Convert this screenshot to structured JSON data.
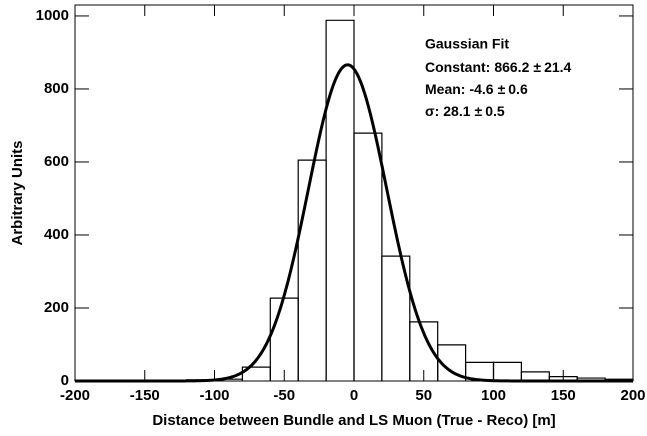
{
  "chart_data": {
    "type": "histogram",
    "xlabel": "Distance between Bundle and LS Muon (True - Reco) [m]",
    "ylabel": "Arbitrary Units",
    "bins": [
      -200,
      -180,
      -160,
      -140,
      -120,
      -100,
      -80,
      -60,
      -40,
      -20,
      0,
      20,
      40,
      60,
      80,
      100,
      120,
      140,
      160,
      180,
      200
    ],
    "counts": [
      2,
      2,
      2,
      2,
      3,
      5,
      38,
      227,
      605,
      988,
      679,
      342,
      162,
      99,
      51,
      51,
      25,
      12,
      8,
      5
    ],
    "color": "#000000",
    "xlim": [
      -200,
      200
    ],
    "ylim": [
      0,
      1030
    ],
    "xticks": [
      -200,
      -150,
      -100,
      -50,
      0,
      50,
      100,
      150,
      200
    ],
    "yticks": [
      0,
      200,
      400,
      600,
      800,
      1000
    ],
    "fit": {
      "title": "Gaussian Fit",
      "params": [
        {
          "name": "Constant:",
          "value": 866.2,
          "pm": "±",
          "error": 21.4
        },
        {
          "name": "Mean:",
          "value": -4.6,
          "pm": "±",
          "error": 0.6
        },
        {
          "name": "σ:",
          "value": 28.1,
          "pm": "±",
          "error": 0.5
        }
      ]
    }
  }
}
